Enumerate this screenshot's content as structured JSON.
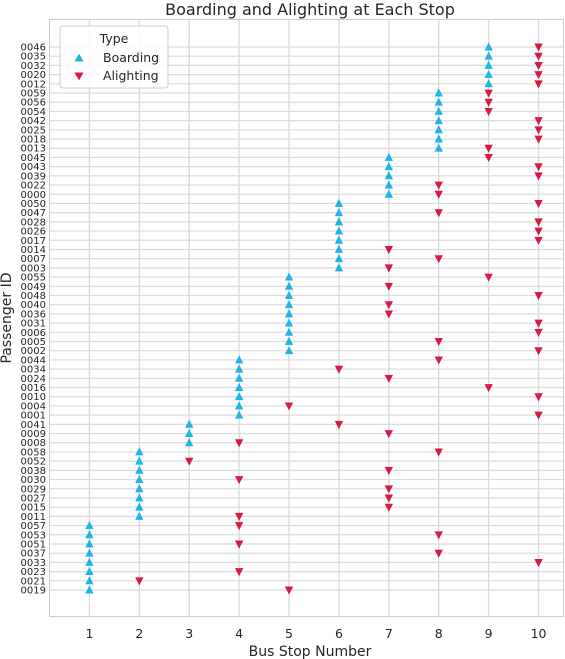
{
  "chart_data": {
    "type": "scatter",
    "title": "Boarding and Alighting at Each Stop",
    "xlabel": "Bus Stop Number",
    "ylabel": "Passenger ID",
    "x_ticks": [
      1,
      2,
      3,
      4,
      5,
      6,
      7,
      8,
      9,
      10
    ],
    "xlim": [
      0.2,
      10.5
    ],
    "grid": true,
    "legend": {
      "title": "Type",
      "placement": "top-left",
      "entries": [
        {
          "name": "Boarding",
          "marker": "triangle-up",
          "color": "#1fb5e6"
        },
        {
          "name": "Alighting",
          "marker": "triangle-down",
          "color": "#d81b44"
        }
      ]
    },
    "passenger_ids": [
      "0046",
      "0035",
      "0032",
      "0020",
      "0012",
      "0059",
      "0056",
      "0054",
      "0042",
      "0025",
      "0018",
      "0013",
      "0045",
      "0043",
      "0039",
      "0022",
      "0000",
      "0050",
      "0047",
      "0028",
      "0026",
      "0017",
      "0014",
      "0007",
      "0003",
      "0055",
      "0049",
      "0048",
      "0040",
      "0036",
      "0031",
      "0006",
      "0005",
      "0002",
      "0044",
      "0034",
      "0024",
      "0016",
      "0010",
      "0004",
      "0001",
      "0041",
      "0009",
      "0008",
      "0058",
      "0052",
      "0038",
      "0030",
      "0029",
      "0027",
      "0015",
      "0011",
      "0057",
      "0053",
      "0051",
      "0037",
      "0033",
      "0023",
      "0021",
      "0019"
    ],
    "series": [
      {
        "name": "Boarding",
        "color": "#1fb5e6",
        "points": [
          {
            "passenger": "0046",
            "stop": 9
          },
          {
            "passenger": "0035",
            "stop": 9
          },
          {
            "passenger": "0032",
            "stop": 9
          },
          {
            "passenger": "0020",
            "stop": 9
          },
          {
            "passenger": "0012",
            "stop": 9
          },
          {
            "passenger": "0059",
            "stop": 8
          },
          {
            "passenger": "0056",
            "stop": 8
          },
          {
            "passenger": "0054",
            "stop": 8
          },
          {
            "passenger": "0042",
            "stop": 8
          },
          {
            "passenger": "0025",
            "stop": 8
          },
          {
            "passenger": "0018",
            "stop": 8
          },
          {
            "passenger": "0013",
            "stop": 8
          },
          {
            "passenger": "0045",
            "stop": 7
          },
          {
            "passenger": "0043",
            "stop": 7
          },
          {
            "passenger": "0039",
            "stop": 7
          },
          {
            "passenger": "0022",
            "stop": 7
          },
          {
            "passenger": "0000",
            "stop": 7
          },
          {
            "passenger": "0050",
            "stop": 6
          },
          {
            "passenger": "0047",
            "stop": 6
          },
          {
            "passenger": "0028",
            "stop": 6
          },
          {
            "passenger": "0026",
            "stop": 6
          },
          {
            "passenger": "0017",
            "stop": 6
          },
          {
            "passenger": "0014",
            "stop": 6
          },
          {
            "passenger": "0007",
            "stop": 6
          },
          {
            "passenger": "0003",
            "stop": 6
          },
          {
            "passenger": "0055",
            "stop": 5
          },
          {
            "passenger": "0049",
            "stop": 5
          },
          {
            "passenger": "0048",
            "stop": 5
          },
          {
            "passenger": "0040",
            "stop": 5
          },
          {
            "passenger": "0036",
            "stop": 5
          },
          {
            "passenger": "0031",
            "stop": 5
          },
          {
            "passenger": "0006",
            "stop": 5
          },
          {
            "passenger": "0005",
            "stop": 5
          },
          {
            "passenger": "0002",
            "stop": 5
          },
          {
            "passenger": "0044",
            "stop": 4
          },
          {
            "passenger": "0034",
            "stop": 4
          },
          {
            "passenger": "0024",
            "stop": 4
          },
          {
            "passenger": "0016",
            "stop": 4
          },
          {
            "passenger": "0010",
            "stop": 4
          },
          {
            "passenger": "0004",
            "stop": 4
          },
          {
            "passenger": "0001",
            "stop": 4
          },
          {
            "passenger": "0041",
            "stop": 3
          },
          {
            "passenger": "0009",
            "stop": 3
          },
          {
            "passenger": "0008",
            "stop": 3
          },
          {
            "passenger": "0058",
            "stop": 2
          },
          {
            "passenger": "0052",
            "stop": 2
          },
          {
            "passenger": "0038",
            "stop": 2
          },
          {
            "passenger": "0030",
            "stop": 2
          },
          {
            "passenger": "0029",
            "stop": 2
          },
          {
            "passenger": "0027",
            "stop": 2
          },
          {
            "passenger": "0015",
            "stop": 2
          },
          {
            "passenger": "0011",
            "stop": 2
          },
          {
            "passenger": "0057",
            "stop": 1
          },
          {
            "passenger": "0053",
            "stop": 1
          },
          {
            "passenger": "0051",
            "stop": 1
          },
          {
            "passenger": "0037",
            "stop": 1
          },
          {
            "passenger": "0033",
            "stop": 1
          },
          {
            "passenger": "0023",
            "stop": 1
          },
          {
            "passenger": "0021",
            "stop": 1
          },
          {
            "passenger": "0019",
            "stop": 1
          }
        ]
      },
      {
        "name": "Alighting",
        "color": "#d81b44",
        "points": [
          {
            "passenger": "0046",
            "stop": 10
          },
          {
            "passenger": "0035",
            "stop": 10
          },
          {
            "passenger": "0032",
            "stop": 10
          },
          {
            "passenger": "0020",
            "stop": 10
          },
          {
            "passenger": "0012",
            "stop": 10
          },
          {
            "passenger": "0059",
            "stop": 9
          },
          {
            "passenger": "0056",
            "stop": 9
          },
          {
            "passenger": "0054",
            "stop": 9
          },
          {
            "passenger": "0042",
            "stop": 10
          },
          {
            "passenger": "0025",
            "stop": 10
          },
          {
            "passenger": "0018",
            "stop": 10
          },
          {
            "passenger": "0013",
            "stop": 9
          },
          {
            "passenger": "0045",
            "stop": 9
          },
          {
            "passenger": "0043",
            "stop": 10
          },
          {
            "passenger": "0039",
            "stop": 10
          },
          {
            "passenger": "0022",
            "stop": 8
          },
          {
            "passenger": "0000",
            "stop": 8
          },
          {
            "passenger": "0050",
            "stop": 10
          },
          {
            "passenger": "0047",
            "stop": 8
          },
          {
            "passenger": "0028",
            "stop": 10
          },
          {
            "passenger": "0026",
            "stop": 10
          },
          {
            "passenger": "0017",
            "stop": 10
          },
          {
            "passenger": "0014",
            "stop": 7
          },
          {
            "passenger": "0007",
            "stop": 8
          },
          {
            "passenger": "0003",
            "stop": 7
          },
          {
            "passenger": "0055",
            "stop": 9
          },
          {
            "passenger": "0049",
            "stop": 7
          },
          {
            "passenger": "0048",
            "stop": 10
          },
          {
            "passenger": "0040",
            "stop": 7
          },
          {
            "passenger": "0036",
            "stop": 7
          },
          {
            "passenger": "0031",
            "stop": 10
          },
          {
            "passenger": "0006",
            "stop": 10
          },
          {
            "passenger": "0005",
            "stop": 8
          },
          {
            "passenger": "0002",
            "stop": 10
          },
          {
            "passenger": "0044",
            "stop": 8
          },
          {
            "passenger": "0034",
            "stop": 6
          },
          {
            "passenger": "0024",
            "stop": 7
          },
          {
            "passenger": "0016",
            "stop": 9
          },
          {
            "passenger": "0010",
            "stop": 10
          },
          {
            "passenger": "0004",
            "stop": 5
          },
          {
            "passenger": "0001",
            "stop": 10
          },
          {
            "passenger": "0041",
            "stop": 6
          },
          {
            "passenger": "0009",
            "stop": 7
          },
          {
            "passenger": "0008",
            "stop": 4
          },
          {
            "passenger": "0058",
            "stop": 8
          },
          {
            "passenger": "0052",
            "stop": 3
          },
          {
            "passenger": "0038",
            "stop": 7
          },
          {
            "passenger": "0030",
            "stop": 4
          },
          {
            "passenger": "0029",
            "stop": 7
          },
          {
            "passenger": "0027",
            "stop": 7
          },
          {
            "passenger": "0015",
            "stop": 7
          },
          {
            "passenger": "0011",
            "stop": 4
          },
          {
            "passenger": "0057",
            "stop": 4
          },
          {
            "passenger": "0053",
            "stop": 8
          },
          {
            "passenger": "0051",
            "stop": 4
          },
          {
            "passenger": "0037",
            "stop": 8
          },
          {
            "passenger": "0033",
            "stop": 10
          },
          {
            "passenger": "0023",
            "stop": 4
          },
          {
            "passenger": "0021",
            "stop": 2
          },
          {
            "passenger": "0019",
            "stop": 5
          }
        ]
      }
    ]
  }
}
